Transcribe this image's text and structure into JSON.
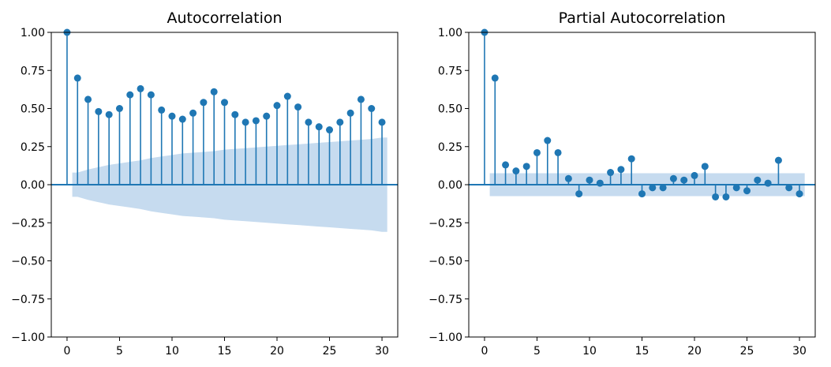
{
  "colors": {
    "stem": "#1f77b4",
    "band": "#c6dbef",
    "axis": "#000000",
    "background": "#ffffff"
  },
  "chart_data": [
    {
      "type": "stem",
      "title": "Autocorrelation",
      "xlabel": "",
      "ylabel": "",
      "xlim": [
        -1.5,
        31.5
      ],
      "ylim": [
        -1.0,
        1.0
      ],
      "xticks": [
        0,
        5,
        10,
        15,
        20,
        25,
        30
      ],
      "yticks": [
        -1.0,
        -0.75,
        -0.5,
        -0.25,
        0.0,
        0.25,
        0.5,
        0.75,
        1.0
      ],
      "xtick_labels": [
        "0",
        "5",
        "10",
        "15",
        "20",
        "25",
        "30"
      ],
      "ytick_labels": [
        "−1.00",
        "−0.75",
        "−0.50",
        "−0.25",
        "0.00",
        "0.25",
        "0.50",
        "0.75",
        "1.00"
      ],
      "lags": [
        0,
        1,
        2,
        3,
        4,
        5,
        6,
        7,
        8,
        9,
        10,
        11,
        12,
        13,
        14,
        15,
        16,
        17,
        18,
        19,
        20,
        21,
        22,
        23,
        24,
        25,
        26,
        27,
        28,
        29,
        30
      ],
      "values": [
        1.0,
        0.7,
        0.56,
        0.48,
        0.46,
        0.5,
        0.59,
        0.63,
        0.59,
        0.49,
        0.45,
        0.43,
        0.47,
        0.54,
        0.61,
        0.54,
        0.46,
        0.41,
        0.42,
        0.45,
        0.52,
        0.58,
        0.51,
        0.41,
        0.38,
        0.36,
        0.41,
        0.47,
        0.56,
        0.5,
        0.41
      ],
      "confidence_band": [
        null,
        0.08,
        0.1,
        0.115,
        0.13,
        0.14,
        0.15,
        0.16,
        0.175,
        0.185,
        0.195,
        0.205,
        0.21,
        0.215,
        0.22,
        0.23,
        0.235,
        0.24,
        0.245,
        0.25,
        0.255,
        0.26,
        0.265,
        0.27,
        0.275,
        0.28,
        0.285,
        0.29,
        0.295,
        0.3,
        0.31
      ]
    },
    {
      "type": "stem",
      "title": "Partial Autocorrelation",
      "xlabel": "",
      "ylabel": "",
      "xlim": [
        -1.5,
        31.5
      ],
      "ylim": [
        -1.0,
        1.0
      ],
      "xticks": [
        0,
        5,
        10,
        15,
        20,
        25,
        30
      ],
      "yticks": [
        -1.0,
        -0.75,
        -0.5,
        -0.25,
        0.0,
        0.25,
        0.5,
        0.75,
        1.0
      ],
      "xtick_labels": [
        "0",
        "5",
        "10",
        "15",
        "20",
        "25",
        "30"
      ],
      "ytick_labels": [
        "−1.00",
        "−0.75",
        "−0.50",
        "−0.25",
        "0.00",
        "0.25",
        "0.50",
        "0.75",
        "1.00"
      ],
      "lags": [
        0,
        1,
        2,
        3,
        4,
        5,
        6,
        7,
        8,
        9,
        10,
        11,
        12,
        13,
        14,
        15,
        16,
        17,
        18,
        19,
        20,
        21,
        22,
        23,
        24,
        25,
        26,
        27,
        28,
        29,
        30
      ],
      "values": [
        1.0,
        0.7,
        0.13,
        0.09,
        0.12,
        0.21,
        0.29,
        0.21,
        0.04,
        -0.06,
        0.03,
        0.01,
        0.08,
        0.1,
        0.17,
        -0.06,
        -0.02,
        -0.02,
        0.04,
        0.03,
        0.06,
        0.12,
        -0.08,
        -0.08,
        -0.02,
        -0.04,
        0.03,
        0.01,
        0.16,
        -0.02,
        -0.06
      ],
      "confidence_band": [
        null,
        0.075,
        0.075,
        0.075,
        0.075,
        0.075,
        0.075,
        0.075,
        0.075,
        0.075,
        0.075,
        0.075,
        0.075,
        0.075,
        0.075,
        0.075,
        0.075,
        0.075,
        0.075,
        0.075,
        0.075,
        0.075,
        0.075,
        0.075,
        0.075,
        0.075,
        0.075,
        0.075,
        0.075,
        0.075,
        0.075
      ]
    }
  ]
}
